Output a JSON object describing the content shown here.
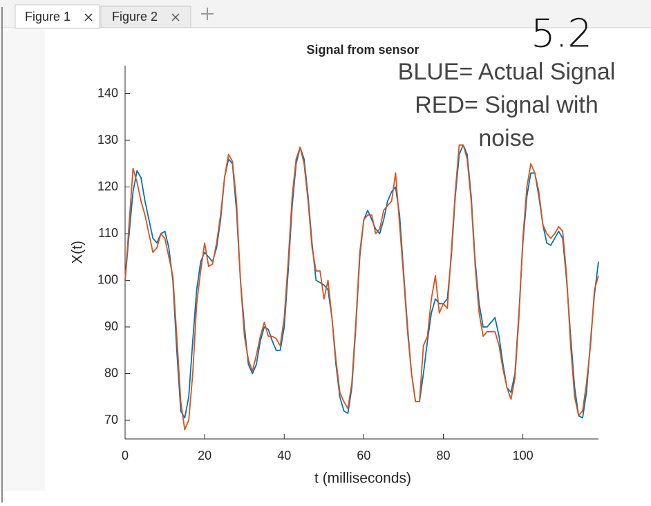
{
  "tabs": [
    "Figure 1",
    "Figure 2"
  ],
  "handwriting": "5.2",
  "chart_data": {
    "type": "line",
    "title": "Signal from sensor",
    "x_label": "t (milliseconds)",
    "y_label": "X(t)",
    "annotation": [
      "BLUE= Actual Signal",
      "RED= Signal with",
      "noise"
    ],
    "x": [
      0,
      1,
      2,
      3,
      4,
      5,
      6,
      7,
      8,
      9,
      10,
      11,
      12,
      13,
      14,
      15,
      16,
      17,
      18,
      19,
      20,
      21,
      22,
      23,
      24,
      25,
      26,
      27,
      28,
      29,
      30,
      31,
      32,
      33,
      34,
      35,
      36,
      37,
      38,
      39,
      40,
      41,
      42,
      43,
      44,
      45,
      46,
      47,
      48,
      49,
      50,
      51,
      52,
      53,
      54,
      55,
      56,
      57,
      58,
      59,
      60,
      61,
      62,
      63,
      64,
      65,
      66,
      67,
      68,
      69,
      70,
      71,
      72,
      73,
      74,
      75,
      76,
      77,
      78,
      79,
      80,
      81,
      82,
      83,
      84,
      85,
      86,
      87,
      88,
      89,
      90,
      91,
      92,
      93,
      94,
      95,
      96,
      97,
      98,
      99,
      100,
      101,
      102,
      103,
      104,
      105,
      106,
      107,
      108,
      109,
      110,
      111,
      112,
      113,
      114,
      115,
      116,
      117,
      118,
      119
    ],
    "series": [
      {
        "color": "#0072bd",
        "values": [
          100,
          110,
          119,
          123.5,
          122,
          117,
          113,
          109,
          108,
          110,
          110.5,
          107,
          100,
          85,
          72,
          70.5,
          75,
          87,
          98,
          104,
          106,
          105,
          104,
          107,
          113,
          122,
          126,
          125,
          115,
          100,
          90,
          82,
          80,
          82,
          87,
          90,
          89.5,
          87,
          85,
          85,
          90,
          102,
          116,
          125,
          128.5,
          126,
          118,
          108,
          100,
          99.5,
          99,
          98,
          92,
          82,
          75,
          72,
          71.5,
          77,
          90,
          105,
          113,
          115,
          113,
          111,
          110,
          113,
          117,
          119,
          120,
          114,
          102,
          90,
          80,
          74,
          74,
          80,
          87,
          93,
          96,
          95,
          95,
          96,
          105,
          118,
          127,
          129,
          127,
          118,
          104,
          95,
          90,
          90,
          91,
          92,
          88,
          82,
          77,
          76,
          80,
          93,
          108,
          118,
          123,
          123,
          118,
          112,
          108,
          107.5,
          109,
          110.5,
          109,
          100,
          88,
          77,
          71,
          70.5,
          76,
          87,
          97,
          104
        ]
      },
      {
        "color": "#d95319",
        "values": [
          100,
          112,
          124,
          121,
          117,
          114,
          110,
          106,
          107,
          110,
          109,
          105,
          101,
          88,
          74,
          68,
          70,
          80,
          95,
          102,
          108,
          103,
          103.5,
          108,
          114,
          122,
          127,
          125.5,
          117,
          100,
          88,
          83,
          80.5,
          84,
          88,
          91,
          88,
          88,
          87.5,
          86,
          92,
          104,
          118,
          126,
          128.5,
          125,
          117,
          107,
          102,
          102,
          96,
          100,
          92,
          83,
          76,
          74,
          72.5,
          78,
          91,
          106,
          113,
          114,
          114,
          110,
          111,
          115,
          116,
          117,
          123,
          112,
          101,
          89,
          80,
          74,
          74,
          86,
          88,
          96,
          101,
          93,
          95,
          94,
          106,
          119,
          129,
          129,
          126,
          117,
          103,
          93,
          88,
          89,
          89,
          89,
          86,
          81,
          77,
          74.5,
          79,
          92,
          109,
          120,
          125,
          123,
          119,
          112,
          110,
          109,
          110,
          111.5,
          110.5,
          101,
          86,
          75,
          71,
          72,
          78,
          86,
          98,
          101
        ]
      }
    ],
    "xlim": [
      0,
      119
    ],
    "ylim": [
      66,
      146
    ],
    "xticks": [
      0,
      20,
      40,
      60,
      80,
      100
    ],
    "yticks": [
      70,
      80,
      90,
      100,
      110,
      120,
      130,
      140
    ]
  }
}
